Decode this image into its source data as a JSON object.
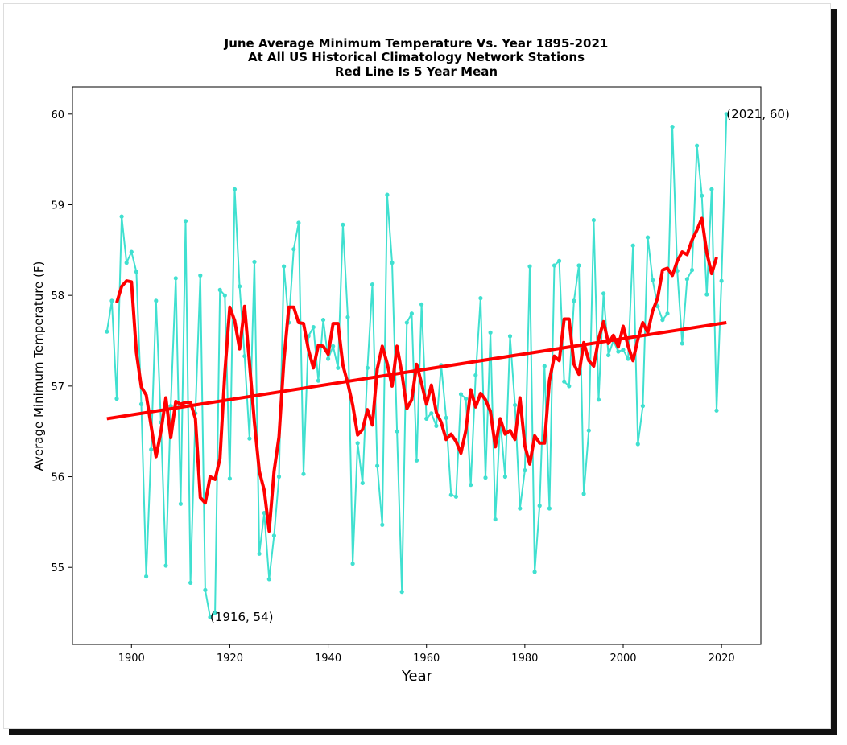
{
  "chart_data": {
    "type": "line",
    "title": [
      "June Average Minimum Temperature Vs. Year 1895-2021",
      "At All US Historical Climatology Network Stations",
      "Red Line Is 5 Year Mean"
    ],
    "xlabel": "Year",
    "ylabel": "Average Minimum Temperature (F)",
    "xlim": [
      1888,
      2028
    ],
    "ylim": [
      54.15,
      60.3
    ],
    "xticks": [
      1900,
      1920,
      1940,
      1960,
      1980,
      2000,
      2020
    ],
    "yticks": [
      55,
      56,
      57,
      58,
      59,
      60
    ],
    "colors": {
      "data": "#40e0d0",
      "mean": "#ff0000",
      "trend": "#ff0000"
    },
    "annotations": [
      {
        "text": "(1916, 54)",
        "x": 1916,
        "y": 54.45
      },
      {
        "text": "(2021, 60)",
        "x": 2021,
        "y": 60.0
      }
    ],
    "series": [
      {
        "x": [
          1895,
          1896,
          1897,
          1898,
          1899,
          1900,
          1901,
          1902,
          1903,
          1904,
          1905,
          1906,
          1907,
          1908,
          1909,
          1910,
          1911,
          1912,
          1913,
          1914,
          1915,
          1916,
          1917,
          1918,
          1919,
          1920,
          1921,
          1922,
          1923,
          1924,
          1925,
          1926,
          1927,
          1928,
          1929,
          1930,
          1931,
          1932,
          1933,
          1934,
          1935,
          1936,
          1937,
          1938,
          1939,
          1940,
          1941,
          1942,
          1943,
          1944,
          1945,
          1946,
          1947,
          1948,
          1949,
          1950,
          1951,
          1952,
          1953,
          1954,
          1955,
          1956,
          1957,
          1958,
          1959,
          1960,
          1961,
          1962,
          1963,
          1964,
          1965,
          1966,
          1967,
          1968,
          1969,
          1970,
          1971,
          1972,
          1973,
          1974,
          1975,
          1976,
          1977,
          1978,
          1979,
          1980,
          1981,
          1982,
          1983,
          1984,
          1985,
          1986,
          1987,
          1988,
          1989,
          1990,
          1991,
          1992,
          1993,
          1994,
          1995,
          1996,
          1997,
          1998,
          1999,
          2000,
          2001,
          2002,
          2003,
          2004,
          2005,
          2006,
          2007,
          2008,
          2009,
          2010,
          2011,
          2012,
          2013,
          2014,
          2015,
          2016,
          2017,
          2018,
          2019,
          2020,
          2021
        ],
        "values": [
          57.6,
          57.94,
          56.86,
          58.87,
          58.36,
          58.48,
          58.26,
          56.8,
          54.9,
          56.3,
          57.94,
          56.6,
          55.02,
          56.78,
          58.19,
          55.7,
          58.82,
          54.83,
          56.7,
          58.22,
          54.75,
          54.45,
          54.5,
          58.06,
          58.0,
          55.98,
          59.17,
          58.1,
          57.33,
          56.42,
          58.37,
          55.15,
          55.6,
          54.87,
          55.35,
          56.0,
          58.32,
          57.7,
          58.51,
          58.8,
          56.03,
          57.55,
          57.65,
          57.06,
          57.73,
          57.3,
          57.44,
          57.2,
          58.78,
          57.76,
          55.04,
          56.37,
          55.93,
          57.2,
          58.12,
          56.12,
          55.47,
          59.11,
          58.36,
          56.5,
          54.73,
          57.7,
          57.8,
          56.18,
          57.9,
          56.64,
          56.7,
          56.56,
          57.23,
          56.65,
          55.8,
          55.78,
          56.91,
          56.86,
          55.91,
          57.12,
          57.97,
          55.99,
          57.59,
          55.53,
          56.62,
          56.0,
          57.55,
          56.79,
          55.65,
          56.07,
          58.32,
          54.95,
          55.68,
          57.22,
          55.65,
          58.33,
          58.38,
          57.05,
          57.0,
          57.94,
          58.33,
          55.81,
          56.51,
          58.83,
          56.85,
          58.02,
          57.34,
          57.5,
          57.38,
          57.4,
          57.3,
          58.55,
          56.36,
          56.78,
          58.64,
          58.17,
          57.88,
          57.73,
          57.8,
          59.86,
          58.27,
          57.47,
          58.18,
          58.28,
          59.65,
          59.1,
          58.01,
          59.17,
          56.73,
          58.16,
          60.0
        ]
      },
      {
        "x": [
          1897,
          1898,
          1899,
          1900,
          1901,
          1902,
          1903,
          1904,
          1905,
          1906,
          1907,
          1908,
          1909,
          1910,
          1911,
          1912,
          1913,
          1914,
          1915,
          1916,
          1917,
          1918,
          1919,
          1920,
          1921,
          1922,
          1923,
          1924,
          1925,
          1926,
          1927,
          1928,
          1929,
          1930,
          1931,
          1932,
          1933,
          1934,
          1935,
          1936,
          1937,
          1938,
          1939,
          1940,
          1941,
          1942,
          1943,
          1944,
          1945,
          1946,
          1947,
          1948,
          1949,
          1950,
          1951,
          1952,
          1953,
          1954,
          1955,
          1956,
          1957,
          1958,
          1959,
          1960,
          1961,
          1962,
          1963,
          1964,
          1965,
          1966,
          1967,
          1968,
          1969,
          1970,
          1971,
          1972,
          1973,
          1974,
          1975,
          1976,
          1977,
          1978,
          1979,
          1980,
          1981,
          1982,
          1983,
          1984,
          1985,
          1986,
          1987,
          1988,
          1989,
          1990,
          1991,
          1992,
          1993,
          1994,
          1995,
          1996,
          1997,
          1998,
          1999,
          2000,
          2001,
          2002,
          2003,
          2004,
          2005,
          2006,
          2007,
          2008,
          2009,
          2010,
          2011,
          2012,
          2013,
          2014,
          2015,
          2016,
          2017,
          2018,
          2019
        ],
        "values": [
          57.92,
          58.1,
          58.16,
          58.15,
          57.37,
          56.99,
          56.9,
          56.56,
          56.22,
          56.5,
          56.87,
          56.43,
          56.83,
          56.8,
          56.82,
          56.82,
          56.64,
          55.77,
          55.71,
          56.0,
          55.97,
          56.2,
          57.15,
          57.87,
          57.72,
          57.41,
          57.88,
          57.25,
          56.6,
          56.06,
          55.85,
          55.4,
          56.06,
          56.44,
          57.28,
          57.87,
          57.87,
          57.7,
          57.69,
          57.4,
          57.2,
          57.45,
          57.44,
          57.35,
          57.69,
          57.69,
          57.23,
          57.03,
          56.79,
          56.46,
          56.52,
          56.74,
          56.57,
          57.19,
          57.44,
          57.25,
          57.0,
          57.44,
          57.14,
          56.75,
          56.85,
          57.24,
          57.03,
          56.8,
          57.01,
          56.71,
          56.6,
          56.41,
          56.47,
          56.39,
          56.26,
          56.51,
          56.96,
          56.77,
          56.92,
          56.85,
          56.72,
          56.33,
          56.64,
          56.47,
          56.51,
          56.41,
          56.87,
          56.34,
          56.14,
          56.45,
          56.37,
          56.37,
          57.06,
          57.33,
          57.28,
          57.74,
          57.74,
          57.24,
          57.13,
          57.48,
          57.28,
          57.22,
          57.52,
          57.71,
          57.47,
          57.56,
          57.43,
          57.66,
          57.44,
          57.28,
          57.52,
          57.7,
          57.59,
          57.83,
          57.97,
          58.28,
          58.3,
          58.22,
          58.38,
          58.48,
          58.45,
          58.61,
          58.72,
          58.85,
          58.47,
          58.24,
          58.42
        ]
      },
      {
        "x": [
          1895,
          2021
        ],
        "values": [
          56.64,
          57.7
        ]
      }
    ]
  }
}
